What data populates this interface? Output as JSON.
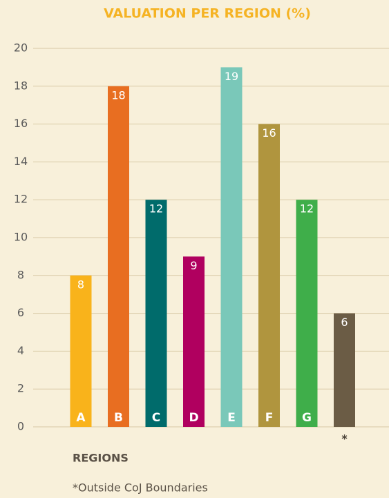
{
  "chart_data": {
    "type": "bar",
    "title": "VALUATION PER REGION (%)",
    "categories": [
      "A",
      "B",
      "C",
      "D",
      "E",
      "F",
      "G",
      "*"
    ],
    "values": [
      8,
      18,
      12,
      9,
      19,
      16,
      12,
      6
    ],
    "colors": [
      "#f9b31b",
      "#e86e21",
      "#006b6b",
      "#b0005f",
      "#7ac8b9",
      "#b0953e",
      "#3fae4a",
      "#6b5c45"
    ],
    "ylim": [
      0,
      20
    ],
    "yticks": [
      0,
      2,
      4,
      6,
      8,
      10,
      12,
      14,
      16,
      18,
      20
    ],
    "grid": true,
    "x_label": "REGIONS",
    "footnote": "*Outside CoJ Boundaries"
  }
}
